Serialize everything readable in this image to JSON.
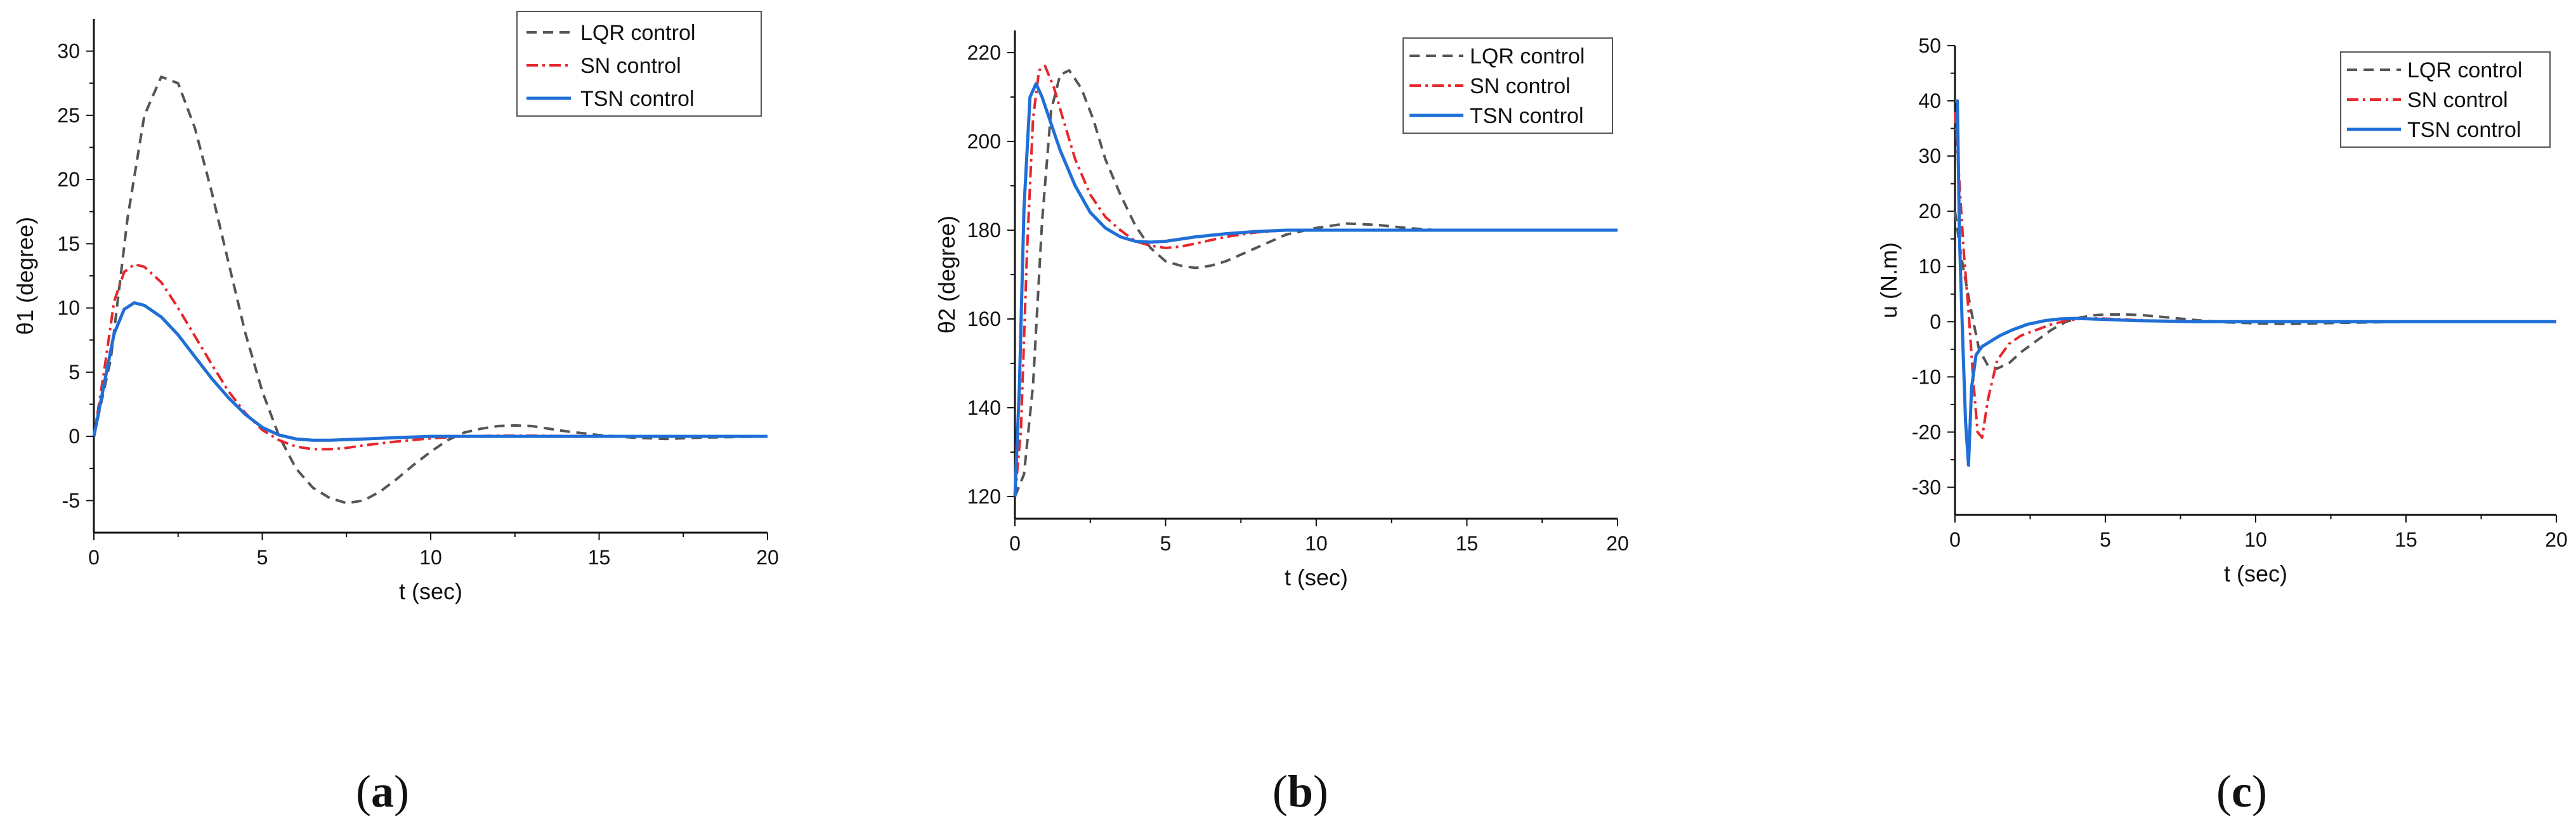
{
  "figure": {
    "panels": [
      {
        "caption_open": "(",
        "caption_letter": "a",
        "caption_close": ")"
      },
      {
        "caption_open": "(",
        "caption_letter": "b",
        "caption_close": ")"
      },
      {
        "caption_open": "(",
        "caption_letter": "c",
        "caption_close": ")"
      }
    ]
  },
  "series_colors": {
    "LQR control": "#555555",
    "SN control": "#e8262b",
    "TSN control": "#1f6fd6"
  },
  "chart_data": [
    {
      "type": "line",
      "title": "",
      "xlabel": "t (sec)",
      "ylabel": "θ1 (degree)",
      "xlim": [
        0,
        20
      ],
      "ylim": [
        -7.5,
        32.5
      ],
      "xticks": [
        0,
        5,
        10,
        15,
        20
      ],
      "yticks": [
        -5,
        0,
        5,
        10,
        15,
        20,
        25,
        30
      ],
      "legend_position": "top-right",
      "series": [
        {
          "name": "LQR control",
          "style": "dash",
          "x": [
            0,
            0.5,
            1,
            1.5,
            2,
            2.5,
            3,
            3.5,
            4,
            4.5,
            5,
            5.5,
            6,
            6.5,
            7,
            7.5,
            8,
            8.5,
            9,
            9.5,
            10,
            10.5,
            11,
            11.5,
            12,
            12.5,
            13,
            13.5,
            14,
            15,
            16,
            17,
            18,
            19,
            20
          ],
          "y": [
            0,
            6,
            17,
            25,
            28,
            27.5,
            24,
            19,
            13.5,
            8,
            3.5,
            0,
            -2.5,
            -4,
            -4.8,
            -5.2,
            -5,
            -4.3,
            -3.3,
            -2.2,
            -1.2,
            -0.3,
            0.3,
            0.6,
            0.8,
            0.85,
            0.8,
            0.6,
            0.4,
            0.1,
            -0.1,
            -0.2,
            -0.1,
            -0.05,
            0
          ]
        },
        {
          "name": "SN control",
          "style": "dashdot",
          "x": [
            0,
            0.3,
            0.6,
            0.9,
            1.2,
            1.5,
            2,
            2.5,
            3,
            3.5,
            4,
            4.5,
            5,
            5.5,
            6,
            6.5,
            7,
            7.5,
            8,
            9,
            10,
            11,
            12,
            13,
            14,
            15,
            16,
            17,
            18,
            19,
            20
          ],
          "y": [
            0,
            5,
            10.5,
            12.8,
            13.4,
            13.2,
            12,
            10,
            7.8,
            5.6,
            3.5,
            1.8,
            0.5,
            -0.3,
            -0.8,
            -1,
            -1,
            -0.9,
            -0.7,
            -0.4,
            -0.15,
            0,
            0.05,
            0.05,
            0.02,
            0,
            0,
            0,
            0,
            0,
            0
          ]
        },
        {
          "name": "TSN control",
          "style": "solid",
          "x": [
            0,
            0.3,
            0.6,
            0.9,
            1.2,
            1.5,
            2,
            2.5,
            3,
            3.5,
            4,
            4.5,
            5,
            5.5,
            6,
            6.5,
            7,
            8,
            9,
            10,
            11,
            12,
            13,
            14,
            15,
            16,
            17,
            18,
            19,
            20
          ],
          "y": [
            0,
            4,
            8,
            9.9,
            10.4,
            10.2,
            9.3,
            7.9,
            6.2,
            4.5,
            3,
            1.7,
            0.7,
            0.1,
            -0.2,
            -0.3,
            -0.3,
            -0.2,
            -0.1,
            0,
            0,
            0,
            0,
            0,
            0,
            0,
            0,
            0,
            0,
            0
          ]
        }
      ]
    },
    {
      "type": "line",
      "title": "",
      "xlabel": "t (sec)",
      "ylabel": "θ2 (degree)",
      "xlim": [
        0,
        20
      ],
      "ylim": [
        115,
        225
      ],
      "xticks": [
        0,
        5,
        10,
        15,
        20
      ],
      "yticks": [
        120,
        140,
        160,
        180,
        200,
        220
      ],
      "legend_position": "top-right",
      "series": [
        {
          "name": "LQR control",
          "style": "dash",
          "x": [
            0,
            0.3,
            0.6,
            0.9,
            1.2,
            1.5,
            1.8,
            2.2,
            2.6,
            3,
            3.5,
            4,
            4.5,
            5,
            5.5,
            6,
            6.5,
            7,
            8,
            9,
            10,
            11,
            12,
            13,
            14,
            15,
            16,
            17,
            18,
            19,
            20
          ],
          "y": [
            120,
            125,
            145,
            182,
            207,
            215,
            216,
            212,
            205,
            196,
            188,
            181,
            176,
            173,
            172,
            171.5,
            172,
            173,
            176,
            179,
            180.5,
            181.5,
            181.2,
            180.5,
            180,
            180,
            180,
            180,
            180,
            180,
            180
          ]
        },
        {
          "name": "SN control",
          "style": "dashdot",
          "x": [
            0,
            0.2,
            0.4,
            0.6,
            0.8,
            1,
            1.3,
            1.6,
            2,
            2.5,
            3,
            3.5,
            4,
            4.5,
            5,
            5.5,
            6,
            7,
            8,
            9,
            10,
            11,
            12,
            13,
            14,
            15,
            16,
            17,
            18,
            19,
            20
          ],
          "y": [
            120,
            135,
            175,
            205,
            216,
            217,
            212,
            205,
            196,
            188,
            183,
            180,
            177.5,
            176.5,
            176,
            176.3,
            177,
            178.5,
            179.5,
            180,
            180,
            180,
            180,
            180,
            180,
            180,
            180,
            180,
            180,
            180,
            180
          ]
        },
        {
          "name": "TSN control",
          "style": "solid",
          "x": [
            0,
            0.15,
            0.3,
            0.5,
            0.7,
            0.9,
            1.2,
            1.5,
            2,
            2.5,
            3,
            3.5,
            4,
            4.5,
            5,
            5.5,
            6,
            7,
            8,
            9,
            10,
            11,
            12,
            13,
            14,
            15,
            16,
            17,
            18,
            19,
            20
          ],
          "y": [
            120,
            145,
            185,
            210,
            213,
            210,
            204,
            198,
            190,
            184,
            180.5,
            178.5,
            177.5,
            177.3,
            177.5,
            178,
            178.5,
            179.2,
            179.7,
            180,
            180,
            180,
            180,
            180,
            180,
            180,
            180,
            180,
            180,
            180,
            180
          ]
        }
      ]
    },
    {
      "type": "line",
      "title": "",
      "xlabel": "t (sec)",
      "ylabel": "u (N.m)",
      "xlim": [
        0,
        20
      ],
      "ylim": [
        -35,
        50
      ],
      "xticks": [
        0,
        5,
        10,
        15,
        20
      ],
      "yticks": [
        -30,
        -20,
        -10,
        0,
        10,
        20,
        30,
        40,
        50
      ],
      "legend_position": "top-right",
      "series": [
        {
          "name": "LQR control",
          "style": "dash",
          "x": [
            0,
            0.2,
            0.5,
            0.8,
            1.1,
            1.4,
            1.8,
            2.2,
            2.7,
            3.2,
            3.7,
            4.2,
            4.7,
            5.2,
            5.7,
            6.2,
            7,
            8,
            9,
            10,
            11,
            12,
            13,
            14,
            15,
            16,
            17,
            18,
            19,
            20
          ],
          "y": [
            20,
            12,
            3,
            -5,
            -8,
            -8.5,
            -7.5,
            -5.5,
            -3.5,
            -1.5,
            0,
            0.8,
            1.2,
            1.3,
            1.3,
            1.2,
            0.8,
            0.3,
            -0.1,
            -0.3,
            -0.4,
            -0.3,
            -0.2,
            -0.1,
            0,
            0,
            0,
            0,
            0,
            0
          ]
        },
        {
          "name": "SN control",
          "style": "dashdot",
          "x": [
            0,
            0.15,
            0.3,
            0.45,
            0.6,
            0.75,
            0.9,
            1.1,
            1.4,
            1.8,
            2.2,
            2.7,
            3.2,
            3.7,
            4.2,
            4.7,
            5.2,
            6,
            7,
            8,
            9,
            10,
            11,
            12,
            13,
            14,
            15,
            16,
            17,
            18,
            19,
            20
          ],
          "y": [
            38,
            25,
            12,
            2,
            -10,
            -20,
            -21,
            -14,
            -7,
            -4,
            -2.5,
            -1.5,
            -0.5,
            0.2,
            0.5,
            0.6,
            0.5,
            0.3,
            0.1,
            0,
            0,
            0,
            0,
            0,
            0,
            0,
            0,
            0,
            0,
            0,
            0,
            0
          ]
        },
        {
          "name": "TSN control",
          "style": "solid",
          "x": [
            0,
            0.08,
            0.15,
            0.25,
            0.35,
            0.45,
            0.55,
            0.7,
            0.9,
            1.2,
            1.5,
            1.9,
            2.4,
            3,
            3.5,
            4,
            4.5,
            5,
            6,
            7,
            8,
            9,
            10,
            11,
            12,
            13,
            14,
            15,
            16,
            17,
            18,
            19,
            20
          ],
          "y": [
            40,
            40,
            15,
            -2,
            -18,
            -26,
            -12,
            -6,
            -4.5,
            -3.5,
            -2.5,
            -1.5,
            -0.5,
            0.2,
            0.5,
            0.6,
            0.5,
            0.4,
            0.2,
            0.1,
            0,
            0,
            0,
            0,
            0,
            0,
            0,
            0,
            0,
            0,
            0,
            0,
            0
          ]
        }
      ]
    }
  ]
}
